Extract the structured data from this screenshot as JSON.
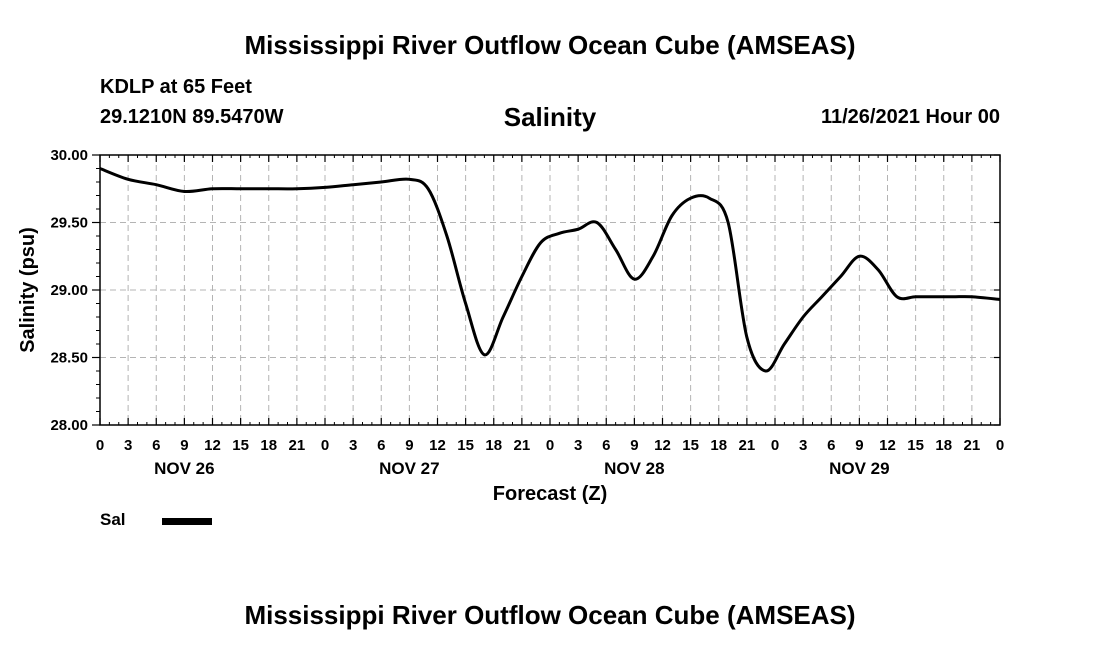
{
  "header": {
    "title": "Mississippi River Outflow Ocean Cube (AMSEAS)",
    "station": "KDLP at 65 Feet",
    "coordinates": "29.1210N  89.5470W",
    "chart_title": "Salinity",
    "run_time": "11/26/2021 Hour 00"
  },
  "footer": {
    "title": "Mississippi River Outflow Ocean Cube (AMSEAS)"
  },
  "legend": {
    "label": "Sal",
    "color": "#000000"
  },
  "chart_data": {
    "type": "line",
    "title": "Salinity",
    "xlabel": "Forecast (Z)",
    "ylabel": "Salinity (psu)",
    "xlim": [
      0,
      96
    ],
    "ylim": [
      28.0,
      30.0
    ],
    "grid": true,
    "legend_position": "bottom-left",
    "y_ticks": [
      "28.00",
      "28.50",
      "29.00",
      "29.50",
      "30.00"
    ],
    "x_tick_labels": [
      "0",
      "3",
      "6",
      "9",
      "12",
      "15",
      "18",
      "21",
      "0",
      "3",
      "6",
      "9",
      "12",
      "15",
      "18",
      "21",
      "0",
      "3",
      "6",
      "9",
      "12",
      "15",
      "18",
      "21",
      "0",
      "3",
      "6",
      "9",
      "12",
      "15",
      "18",
      "21",
      "0"
    ],
    "date_labels": [
      {
        "label": "NOV 26",
        "x": 9
      },
      {
        "label": "NOV 27",
        "x": 33
      },
      {
        "label": "NOV 28",
        "x": 57
      },
      {
        "label": "NOV 29",
        "x": 81
      }
    ],
    "series": [
      {
        "name": "Sal",
        "color": "#000000",
        "x": [
          0,
          3,
          6,
          9,
          12,
          15,
          18,
          21,
          24,
          27,
          30,
          33,
          35,
          37,
          39,
          41,
          43,
          45,
          47,
          49,
          51,
          53,
          55,
          57,
          59,
          61,
          63,
          65,
          67,
          69,
          71,
          73,
          75,
          77,
          79,
          81,
          83,
          85,
          87,
          89,
          91,
          93,
          96
        ],
        "y": [
          29.9,
          29.82,
          29.78,
          29.73,
          29.75,
          29.75,
          29.75,
          29.75,
          29.76,
          29.78,
          29.8,
          29.82,
          29.75,
          29.4,
          28.9,
          28.52,
          28.8,
          29.1,
          29.35,
          29.42,
          29.45,
          29.5,
          29.3,
          29.08,
          29.25,
          29.55,
          29.68,
          29.68,
          29.5,
          28.65,
          28.4,
          28.6,
          28.8,
          28.95,
          29.1,
          29.25,
          29.15,
          28.95,
          28.95,
          28.95,
          28.95,
          28.95,
          28.93
        ]
      }
    ]
  }
}
